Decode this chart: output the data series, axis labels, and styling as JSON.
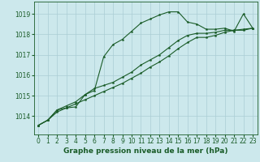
{
  "background_color": "#cce8ec",
  "grid_color": "#aacdd4",
  "line_color": "#1a5c28",
  "marker_color": "#1a5c28",
  "title": "Graphe pression niveau de la mer (hPa)",
  "title_fontsize": 6.5,
  "tick_fontsize": 5.5,
  "xlim": [
    -0.5,
    23.5
  ],
  "ylim": [
    1013.1,
    1019.6
  ],
  "yticks": [
    1014,
    1015,
    1016,
    1017,
    1018,
    1019
  ],
  "xticks": [
    0,
    1,
    2,
    3,
    4,
    5,
    6,
    7,
    8,
    9,
    10,
    11,
    12,
    13,
    14,
    15,
    16,
    17,
    18,
    19,
    20,
    21,
    22,
    23
  ],
  "series1_x": [
    0,
    1,
    2,
    3,
    4,
    5,
    6,
    7,
    8,
    9,
    10,
    11,
    12,
    13,
    14,
    15,
    16,
    17,
    18,
    19,
    20,
    21,
    22,
    23
  ],
  "series1_y": [
    1013.55,
    1013.8,
    1014.3,
    1014.4,
    1014.45,
    1015.05,
    1015.25,
    1016.9,
    1017.5,
    1017.75,
    1018.15,
    1018.55,
    1018.75,
    1018.95,
    1019.1,
    1019.1,
    1018.6,
    1018.5,
    1018.25,
    1018.25,
    1018.3,
    1018.15,
    1019.0,
    1018.3
  ],
  "series2_x": [
    0,
    1,
    2,
    3,
    4,
    5,
    6,
    7,
    8,
    9,
    10,
    11,
    12,
    13,
    14,
    15,
    16,
    17,
    18,
    19,
    20,
    21,
    22,
    23
  ],
  "series2_y": [
    1013.55,
    1013.8,
    1014.3,
    1014.5,
    1014.7,
    1015.05,
    1015.35,
    1015.5,
    1015.65,
    1015.9,
    1016.15,
    1016.5,
    1016.75,
    1017.0,
    1017.35,
    1017.7,
    1017.95,
    1018.05,
    1018.05,
    1018.1,
    1018.2,
    1018.2,
    1018.25,
    1018.3
  ],
  "series3_x": [
    0,
    1,
    2,
    3,
    4,
    5,
    6,
    7,
    8,
    9,
    10,
    11,
    12,
    13,
    14,
    15,
    16,
    17,
    18,
    19,
    20,
    21,
    22,
    23
  ],
  "series3_y": [
    1013.55,
    1013.8,
    1014.2,
    1014.4,
    1014.6,
    1014.8,
    1015.0,
    1015.2,
    1015.4,
    1015.6,
    1015.85,
    1016.1,
    1016.4,
    1016.65,
    1016.95,
    1017.3,
    1017.6,
    1017.85,
    1017.85,
    1017.95,
    1018.1,
    1018.2,
    1018.2,
    1018.3
  ]
}
